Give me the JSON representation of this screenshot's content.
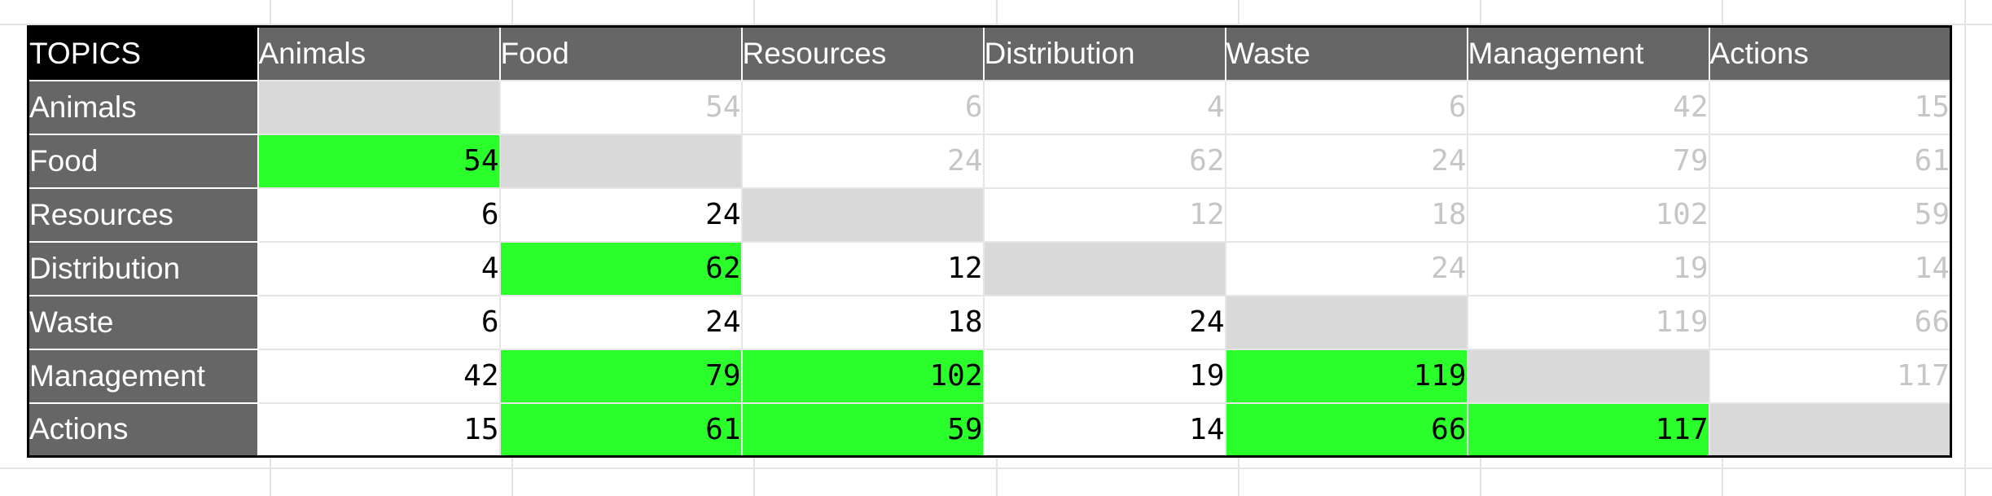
{
  "table": {
    "corner_label": "TOPICS",
    "columns": [
      "Animals",
      "Food",
      "Resources",
      "Distribution",
      "Waste",
      "Management",
      "Actions"
    ],
    "rows": [
      {
        "label": "Animals",
        "values": [
          "",
          "54",
          "6",
          "4",
          "6",
          "42",
          "15"
        ]
      },
      {
        "label": "Food",
        "values": [
          "54",
          "",
          "24",
          "62",
          "24",
          "79",
          "61"
        ]
      },
      {
        "label": "Resources",
        "values": [
          "6",
          "24",
          "",
          "12",
          "18",
          "102",
          "59"
        ]
      },
      {
        "label": "Distribution",
        "values": [
          "4",
          "62",
          "12",
          "",
          "24",
          "19",
          "14"
        ]
      },
      {
        "label": "Waste",
        "values": [
          "6",
          "24",
          "18",
          "24",
          "",
          "119",
          "66"
        ]
      },
      {
        "label": "Management",
        "values": [
          "42",
          "79",
          "102",
          "19",
          "119",
          "",
          "117"
        ]
      },
      {
        "label": "Actions",
        "values": [
          "15",
          "61",
          "59",
          "14",
          "66",
          "117",
          ""
        ]
      }
    ],
    "highlighted_cells": [
      [
        1,
        0
      ],
      [
        3,
        1
      ],
      [
        5,
        1
      ],
      [
        5,
        2
      ],
      [
        5,
        4
      ],
      [
        6,
        1
      ],
      [
        6,
        2
      ],
      [
        6,
        4
      ],
      [
        6,
        5
      ]
    ],
    "colors": {
      "header_bg": "#666666",
      "corner_bg": "#000000",
      "highlight": "#2bff2b",
      "diagonal": "#d9d9d9",
      "upper_text": "#c6c6c6",
      "lower_text": "#000000"
    }
  }
}
